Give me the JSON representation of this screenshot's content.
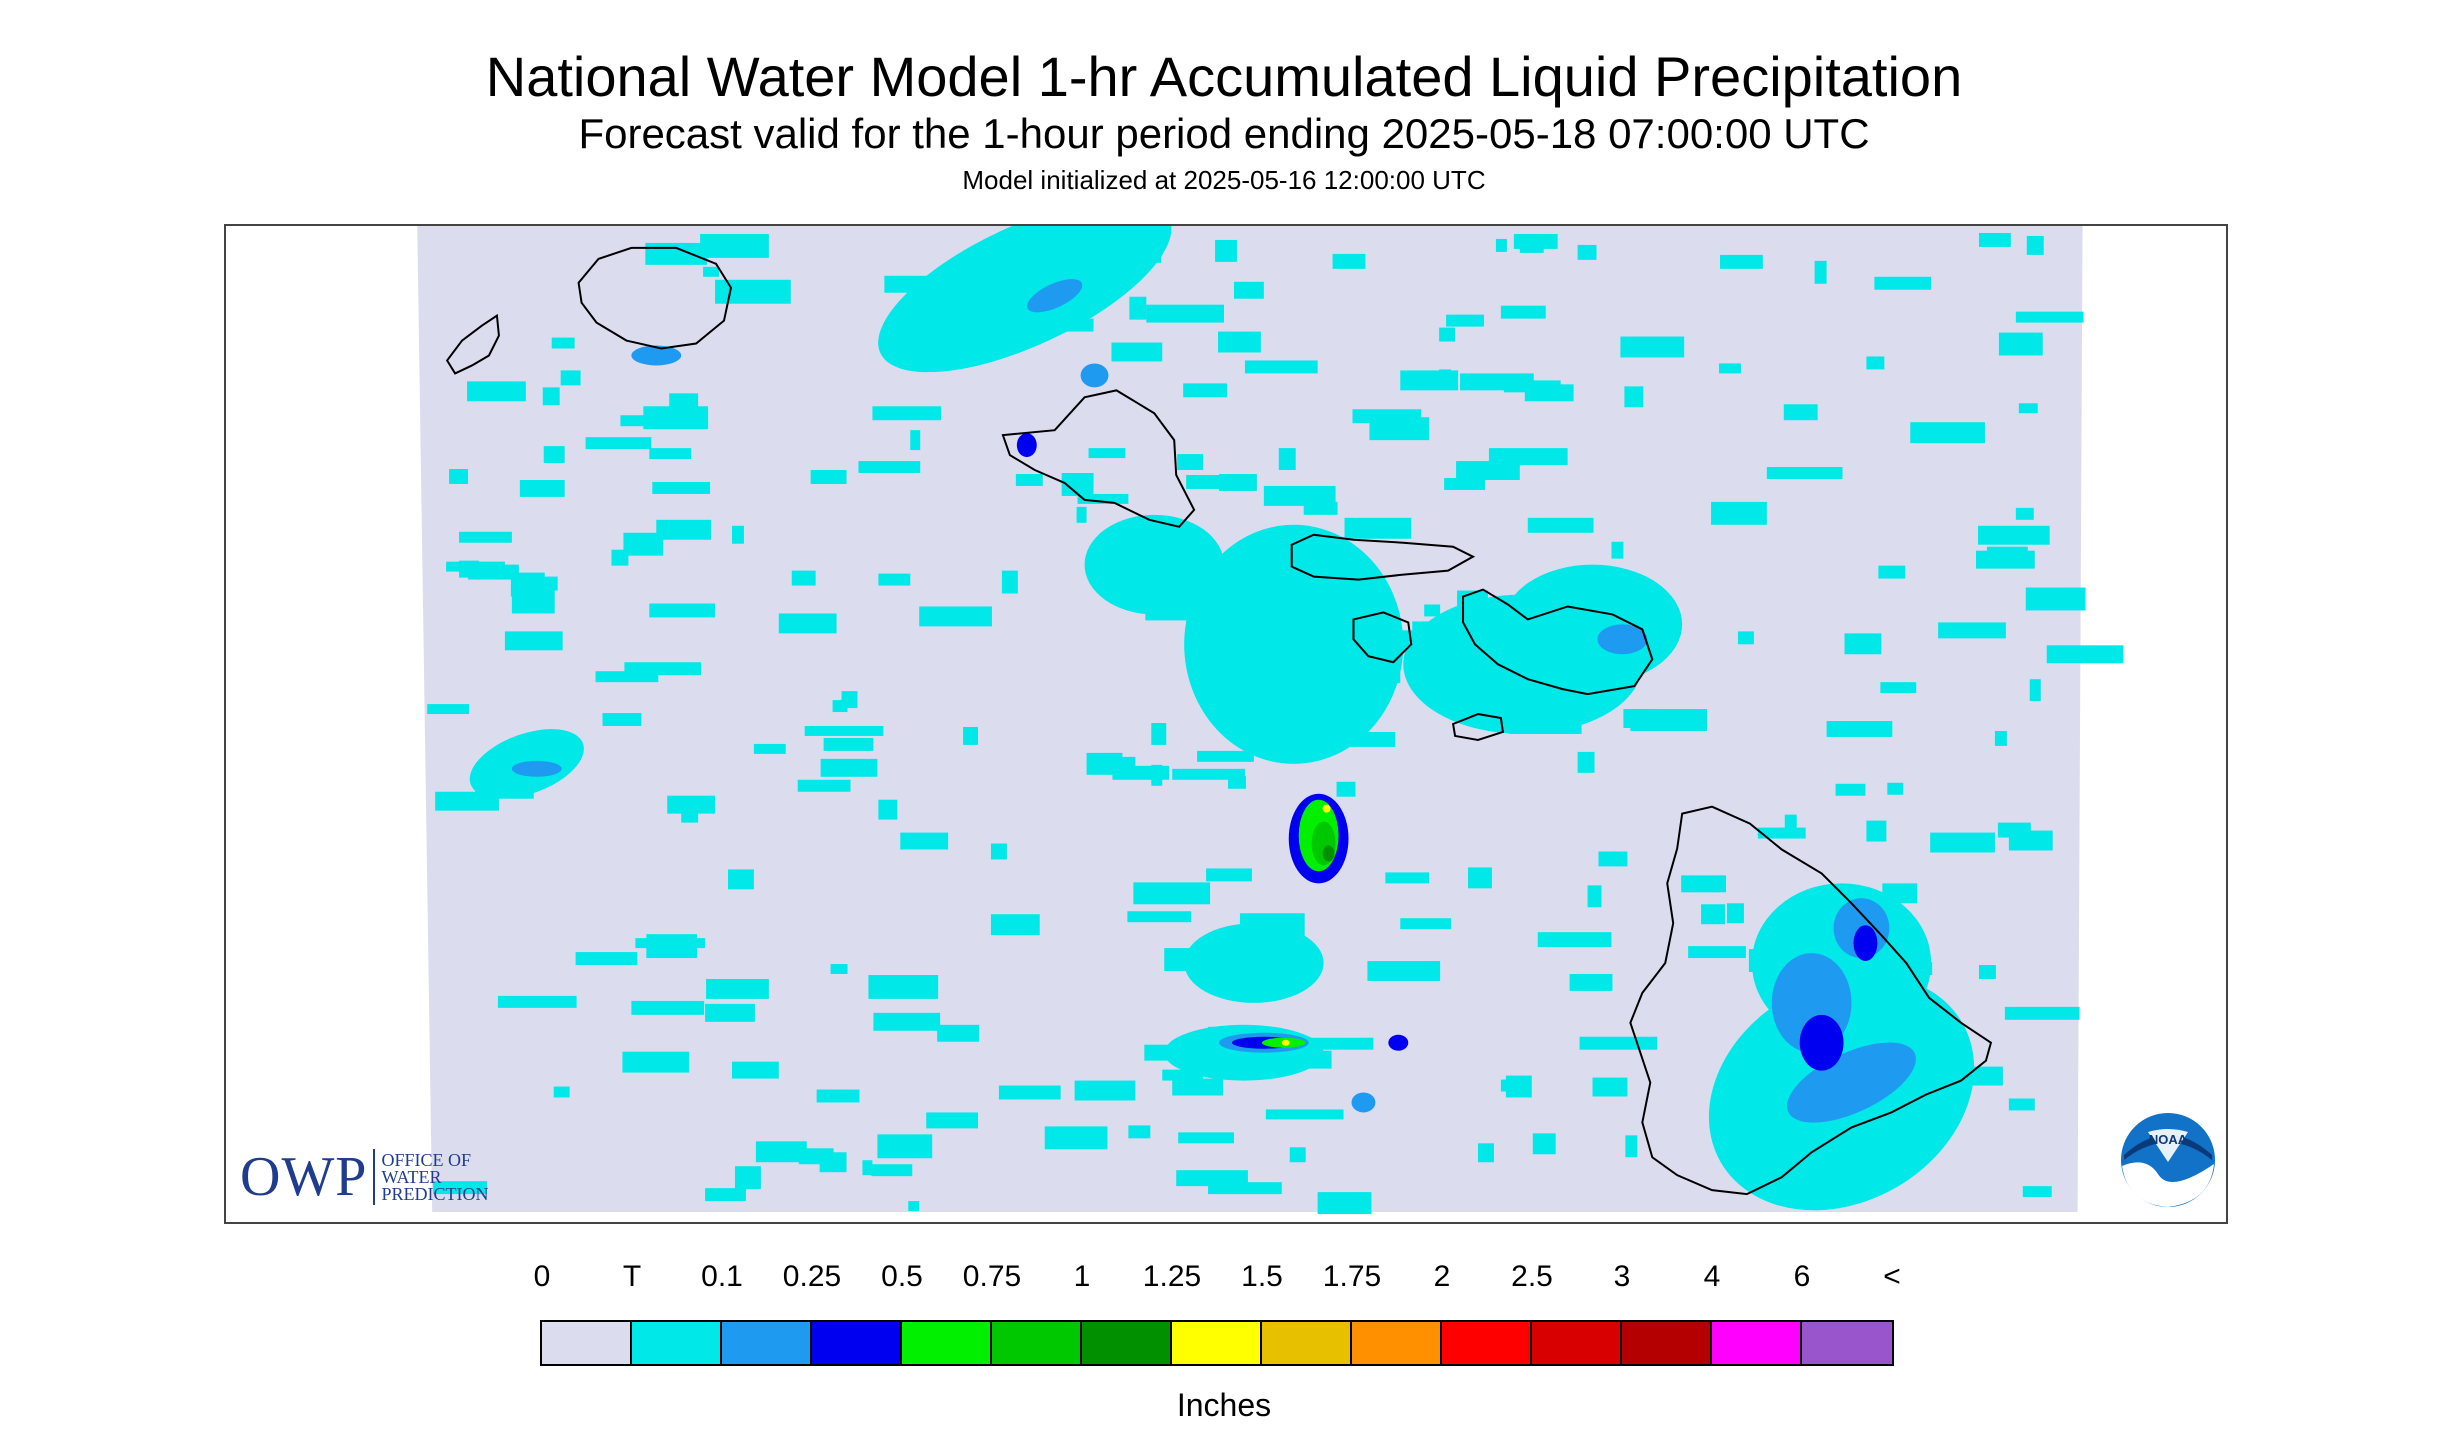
{
  "header": {
    "title": "National Water Model 1-hr Accumulated Liquid Precipitation",
    "subtitle": "Forecast valid for the 1-hour period ending 2025-05-18 07:00:00 UTC",
    "init": "Model initialized at 2025-05-16 12:00:00 UTC"
  },
  "map": {
    "background_color": "#dcdcef",
    "coastline_color": "#000000",
    "owp_logo": {
      "letters": "OWP",
      "line1": "OFFICE OF",
      "line2": "WATER",
      "line3": "PREDICTION"
    },
    "noaa_logo_text": "NOAA"
  },
  "legend": {
    "labels": [
      "0",
      "T",
      "0.1",
      "0.25",
      "0.5",
      "0.75",
      "1",
      "1.25",
      "1.5",
      "1.75",
      "2",
      "2.5",
      "3",
      "4",
      "6",
      "<"
    ],
    "colors": [
      "#dcdcef",
      "#00e8e8",
      "#1e9bf0",
      "#0000f0",
      "#00f000",
      "#00c800",
      "#009000",
      "#ffff00",
      "#e7c000",
      "#ff9000",
      "#ff0000",
      "#d80000",
      "#b40000",
      "#ff00ff",
      "#9955cc"
    ],
    "unit": "Inches"
  }
}
